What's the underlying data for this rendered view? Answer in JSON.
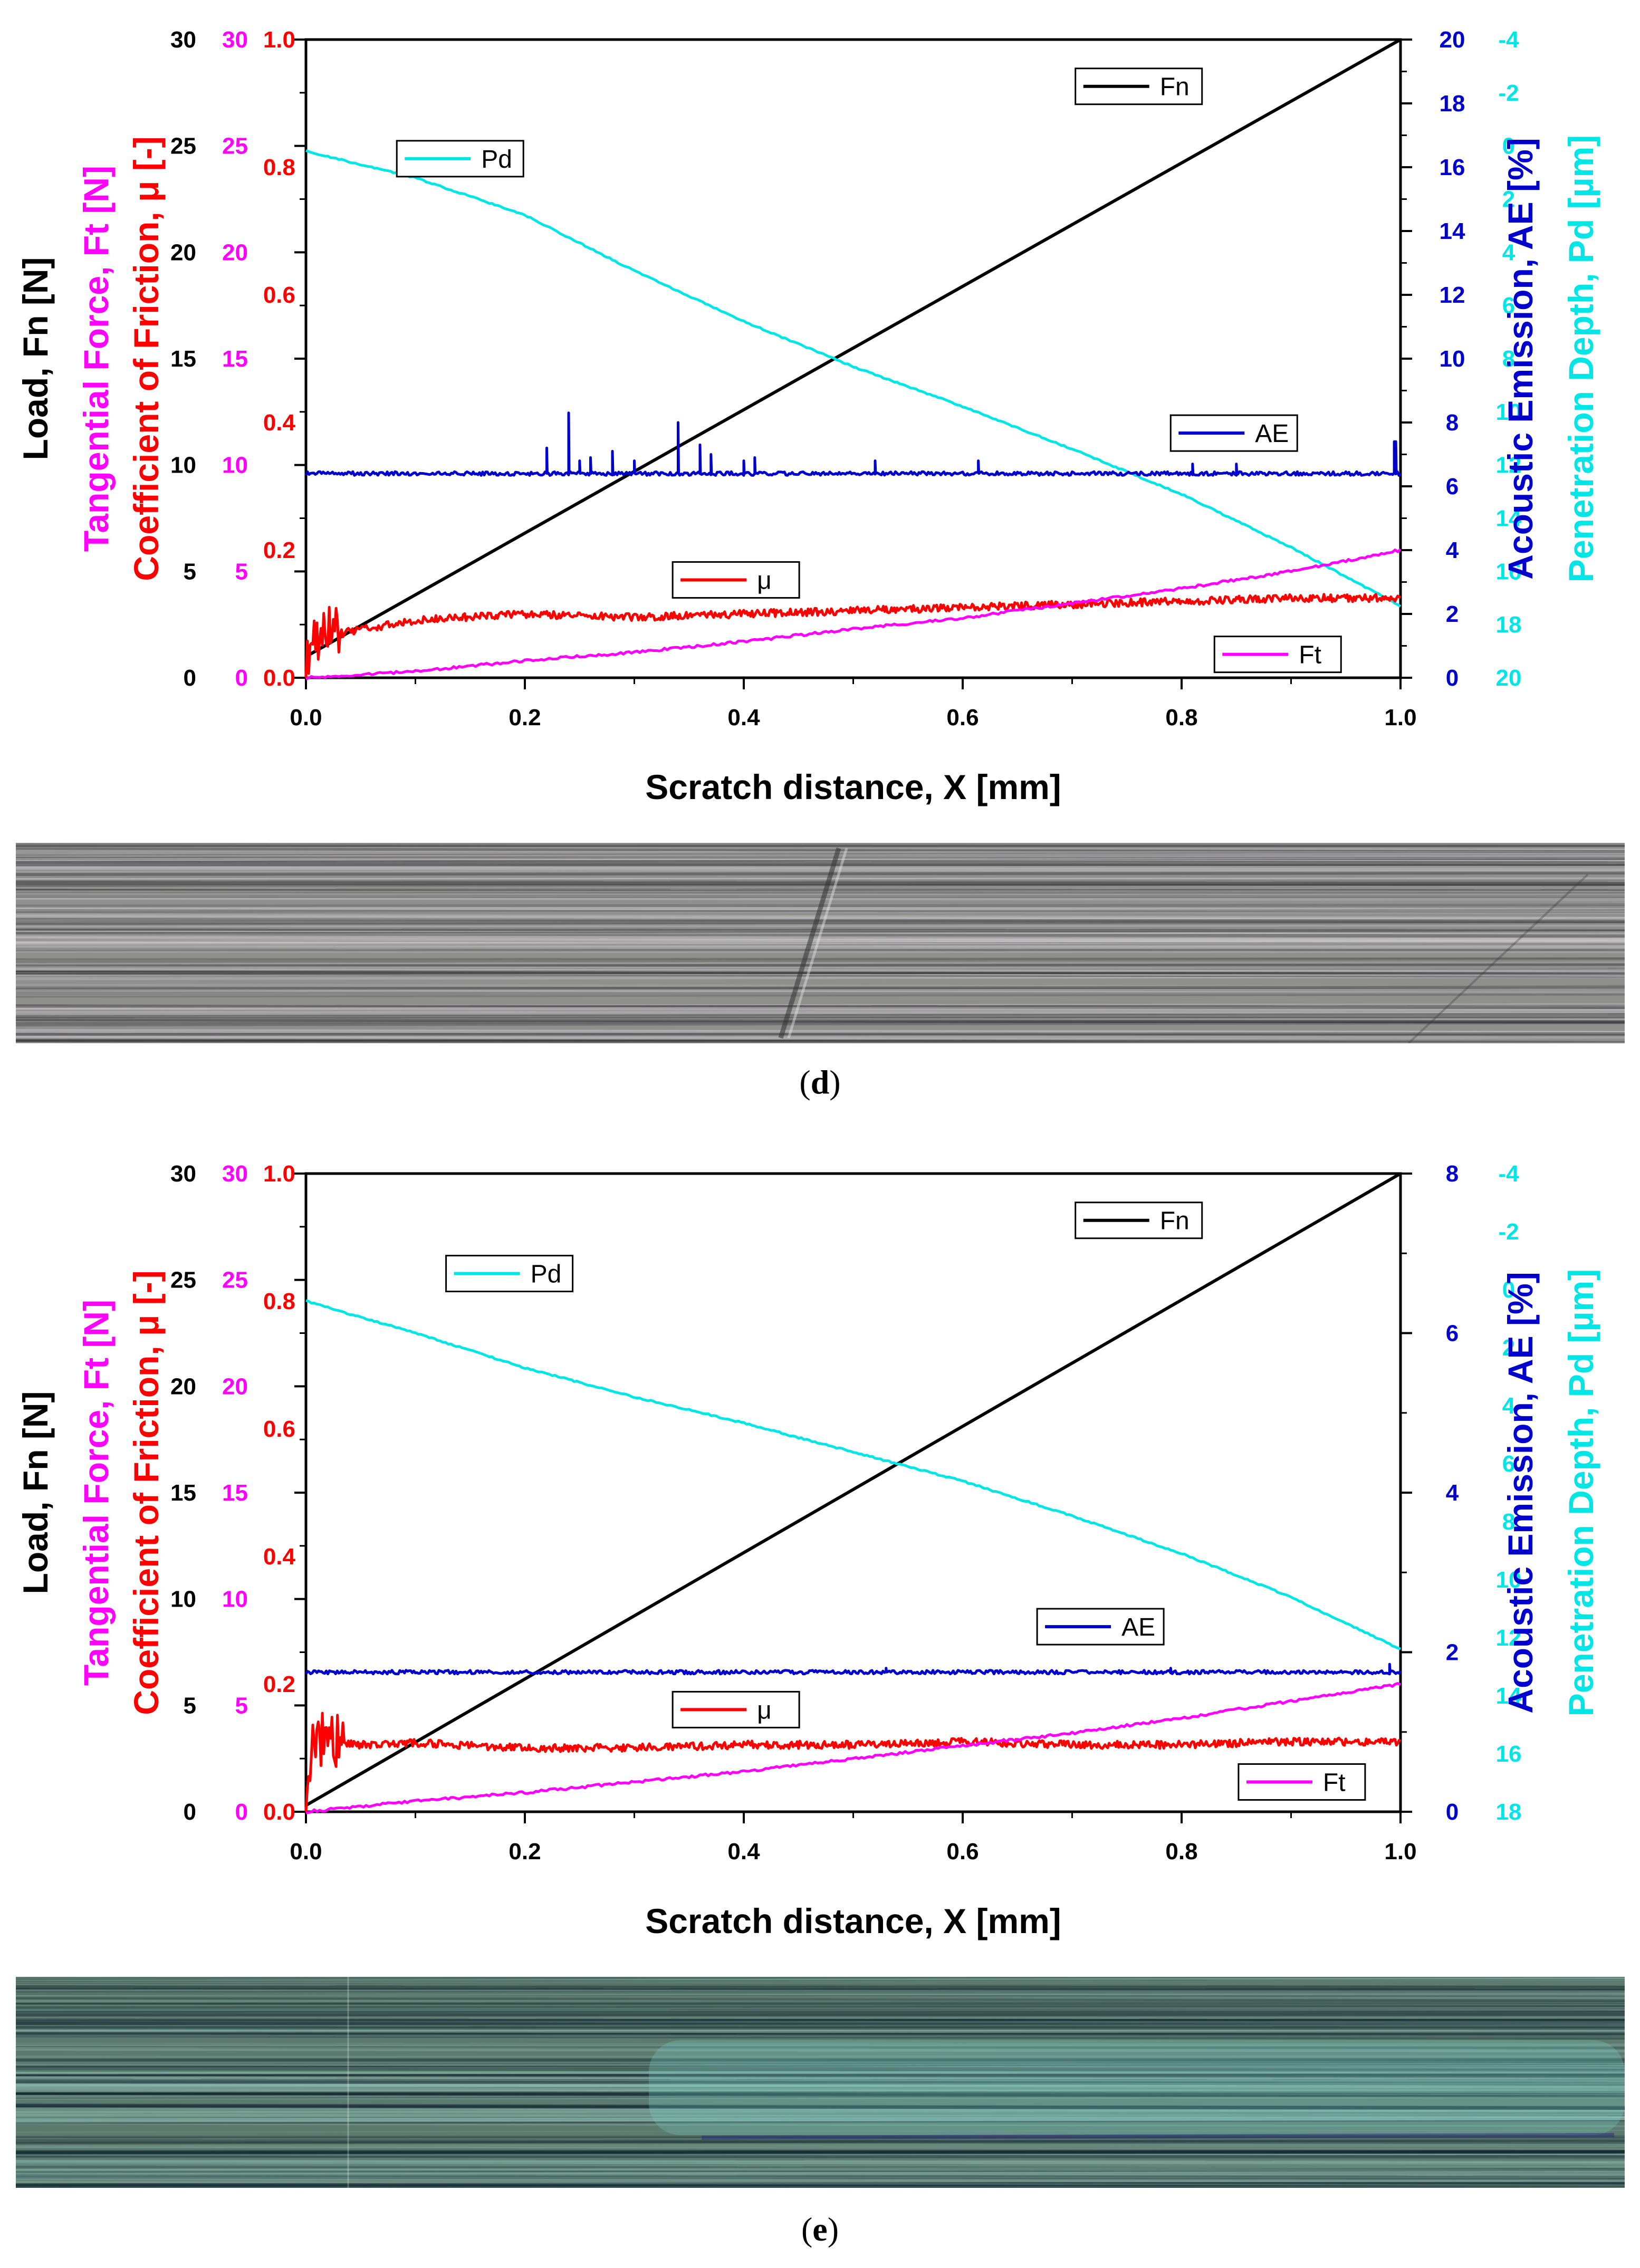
{
  "panels": [
    {
      "caption_open": "(",
      "caption_label": "d",
      "caption_close": ")",
      "micrograph_style": "grey",
      "chart_data": {
        "type": "line",
        "xlabel": "Scratch distance, X [mm]",
        "xlim": [
          0,
          1
        ],
        "xticks": [
          0.0,
          0.2,
          0.4,
          0.6,
          0.8,
          1.0
        ],
        "left_axes": [
          {
            "label": "Load, Fn [N]",
            "color": "#000000",
            "range": [
              0,
              30
            ],
            "ticks": [
              0,
              5,
              10,
              15,
              20,
              25,
              30
            ]
          },
          {
            "label": "Tangential Force, Ft [N]",
            "color": "#ff00ff",
            "range": [
              0,
              30
            ],
            "ticks": [
              0,
              5,
              10,
              15,
              20,
              25,
              30
            ]
          },
          {
            "label": "Coefficient of Friction, μ [-]",
            "color": "#ff0000",
            "range": [
              0,
              1.0
            ],
            "ticks": [
              0.0,
              0.2,
              0.4,
              0.6,
              0.8,
              1.0
            ]
          }
        ],
        "right_axes": [
          {
            "label": "Acoustic Emission, AE [%]",
            "color": "#0000cc",
            "range": [
              0,
              20
            ],
            "ticks": [
              0,
              2,
              4,
              6,
              8,
              10,
              12,
              14,
              16,
              18,
              20
            ]
          },
          {
            "label": "Penetration Depth, Pd [µm]",
            "color": "#00e5e5",
            "range": [
              20,
              -4
            ],
            "ticks": [
              -4,
              -2,
              0,
              2,
              4,
              6,
              8,
              10,
              12,
              14,
              16,
              18,
              20
            ]
          }
        ],
        "series": [
          {
            "name": "Fn",
            "color": "#000000",
            "axis": "Fn",
            "x": [
              0,
              1
            ],
            "y": [
              1.0,
              30.0
            ]
          },
          {
            "name": "Pd",
            "color": "#00e5e5",
            "axis": "Pd",
            "x": [
              0,
              0.1,
              0.2,
              0.3,
              0.4,
              0.5,
              0.6,
              0.7,
              0.8,
              0.9,
              1.0
            ],
            "y": [
              0.2,
              1.2,
              2.6,
              4.7,
              6.6,
              8.3,
              9.8,
              11.4,
              13.1,
              15.1,
              17.3
            ]
          },
          {
            "name": "AE",
            "color": "#0000cc",
            "axis": "AE",
            "baseline": 6.4,
            "spikes": [
              [
                0.22,
                7.2
              ],
              [
                0.24,
                8.3
              ],
              [
                0.25,
                6.8
              ],
              [
                0.26,
                6.9
              ],
              [
                0.28,
                7.1
              ],
              [
                0.3,
                6.8
              ],
              [
                0.34,
                8.0
              ],
              [
                0.355,
                7.2
              ],
              [
                0.36,
                7.3
              ],
              [
                0.37,
                7.0
              ],
              [
                0.4,
                6.8
              ],
              [
                0.41,
                6.9
              ],
              [
                0.52,
                6.8
              ],
              [
                0.615,
                6.8
              ],
              [
                0.81,
                6.7
              ],
              [
                0.85,
                6.7
              ],
              [
                0.995,
                7.4
              ]
            ]
          },
          {
            "name": "μ",
            "color": "#ff0000",
            "axis": "μ",
            "x": [
              0,
              0.01,
              0.03,
              0.1,
              0.2,
              0.3,
              0.4,
              0.5,
              0.6,
              0.7,
              0.8,
              0.9,
              1.0
            ],
            "y": [
              0.04,
              0.06,
              0.07,
              0.09,
              0.1,
              0.095,
              0.1,
              0.105,
              0.11,
              0.115,
              0.12,
              0.125,
              0.125
            ]
          },
          {
            "name": "Ft",
            "color": "#ff00ff",
            "axis": "Ft",
            "x": [
              0,
              0.1,
              0.2,
              0.3,
              0.4,
              0.5,
              0.6,
              0.7,
              0.8,
              0.9,
              1.0
            ],
            "y": [
              0.0,
              0.3,
              0.8,
              1.2,
              1.7,
              2.3,
              2.8,
              3.5,
              4.2,
              5.0,
              6.0
            ]
          }
        ],
        "legend": [
          {
            "name": "Fn",
            "color": "#000000",
            "lx": 0.703,
            "ly": 27.8
          },
          {
            "name": "Pd",
            "color": "#00e5e5",
            "lx": 0.083,
            "ly": 24.4
          },
          {
            "name": "AE",
            "color": "#0000cc",
            "lx": 0.79,
            "ly": 11.5
          },
          {
            "name": "μ",
            "color": "#ff0000",
            "lx": 0.335,
            "ly": 4.6
          },
          {
            "name": "Ft",
            "color": "#ff00ff",
            "lx": 0.83,
            "ly": 1.1
          }
        ]
      }
    },
    {
      "caption_open": "(",
      "caption_label": "e",
      "caption_close": ")",
      "micrograph_style": "teal",
      "chart_data": {
        "type": "line",
        "xlabel": "Scratch distance, X [mm]",
        "xlim": [
          0,
          1
        ],
        "xticks": [
          0.0,
          0.2,
          0.4,
          0.6,
          0.8,
          1.0
        ],
        "left_axes": [
          {
            "label": "Load, Fn [N]",
            "color": "#000000",
            "range": [
              0,
              30
            ],
            "ticks": [
              0,
              5,
              10,
              15,
              20,
              25,
              30
            ]
          },
          {
            "label": "Tangential Force, Ft [N]",
            "color": "#ff00ff",
            "range": [
              0,
              30
            ],
            "ticks": [
              0,
              5,
              10,
              15,
              20,
              25,
              30
            ]
          },
          {
            "label": "Coefficient of Friction, μ [-]",
            "color": "#ff0000",
            "range": [
              0,
              1.0
            ],
            "ticks": [
              0.0,
              0.2,
              0.4,
              0.6,
              0.8,
              1.0
            ]
          }
        ],
        "right_axes": [
          {
            "label": "Acoustic Emission, AE [%]",
            "color": "#0000cc",
            "range": [
              0,
              8
            ],
            "ticks": [
              0,
              2,
              4,
              6,
              8
            ]
          },
          {
            "label": "Penetration Depth, Pd [µm]",
            "color": "#00e5e5",
            "range": [
              18,
              -4
            ],
            "ticks": [
              -4,
              -2,
              0,
              2,
              4,
              6,
              8,
              10,
              12,
              14,
              16,
              18
            ]
          }
        ],
        "series": [
          {
            "name": "Fn",
            "color": "#000000",
            "axis": "Fn",
            "x": [
              0,
              1
            ],
            "y": [
              0.3,
              30.0
            ]
          },
          {
            "name": "Pd",
            "color": "#00e5e5",
            "axis": "Pd",
            "x": [
              0,
              0.1,
              0.2,
              0.3,
              0.4,
              0.5,
              0.6,
              0.7,
              0.8,
              0.9,
              1.0
            ],
            "y": [
              0.4,
              1.5,
              2.7,
              3.7,
              4.6,
              5.6,
              6.6,
              7.8,
              9.1,
              10.6,
              12.4
            ]
          },
          {
            "name": "AE",
            "color": "#0000cc",
            "axis": "AE",
            "baseline": 1.75,
            "spikes": [
              [
                0.53,
                1.8
              ],
              [
                0.79,
                1.8
              ],
              [
                0.99,
                1.85
              ]
            ]
          },
          {
            "name": "μ",
            "color": "#ff0000",
            "axis": "μ",
            "x": [
              0,
              0.005,
              0.02,
              0.05,
              0.1,
              0.2,
              0.3,
              0.4,
              0.5,
              0.6,
              0.7,
              0.8,
              0.9,
              1.0
            ],
            "y": [
              0.02,
              0.115,
              0.11,
              0.105,
              0.108,
              0.1,
              0.1,
              0.105,
              0.105,
              0.11,
              0.105,
              0.105,
              0.11,
              0.11
            ]
          },
          {
            "name": "Ft",
            "color": "#ff00ff",
            "axis": "Ft",
            "x": [
              0,
              0.1,
              0.2,
              0.3,
              0.4,
              0.5,
              0.6,
              0.7,
              0.8,
              0.9,
              1.0
            ],
            "y": [
              0.0,
              0.5,
              0.9,
              1.4,
              1.9,
              2.5,
              3.1,
              3.7,
              4.4,
              5.2,
              6.0
            ]
          }
        ],
        "legend": [
          {
            "name": "Fn",
            "color": "#000000",
            "lx": 0.703,
            "ly": 27.8
          },
          {
            "name": "Pd",
            "color": "#00e5e5",
            "lx": 0.128,
            "ly": 25.3
          },
          {
            "name": "AE",
            "color": "#0000cc",
            "lx": 0.668,
            "ly": 8.7
          },
          {
            "name": "μ",
            "color": "#ff0000",
            "lx": 0.335,
            "ly": 4.8
          },
          {
            "name": "Ft",
            "color": "#ff00ff",
            "lx": 0.852,
            "ly": 1.4
          }
        ]
      }
    }
  ]
}
